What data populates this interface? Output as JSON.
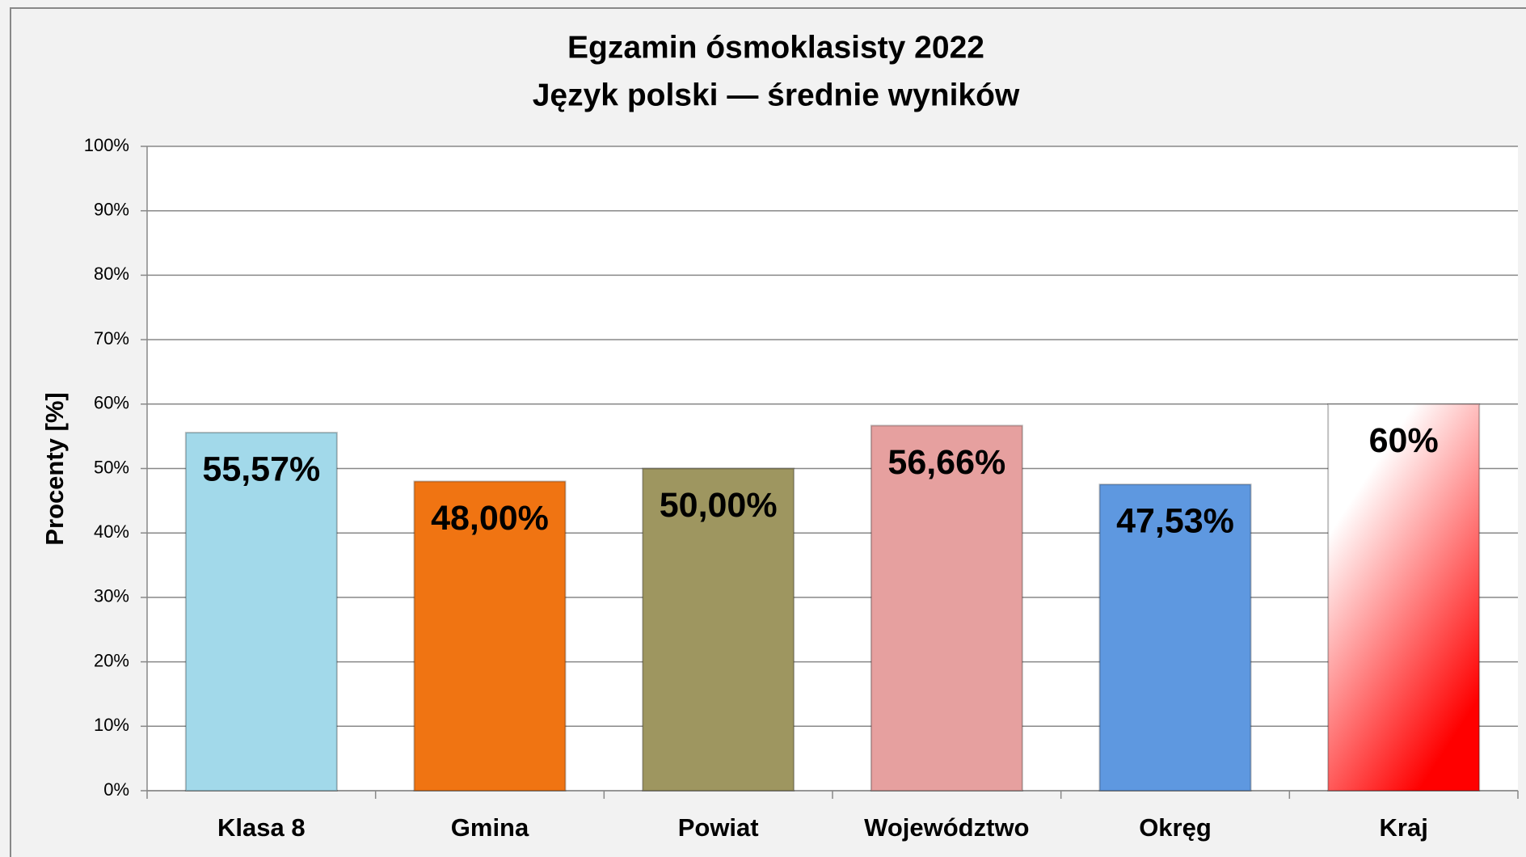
{
  "chart_data": {
    "type": "bar",
    "title": "Egzamin ósmoklasisty 2022",
    "subtitle": "Język polski — średnie wyników",
    "y_label": "Procenty [%]",
    "categories": [
      "Klasa 8",
      "Gmina",
      "Powiat",
      "Województwo",
      "Okręg",
      "Kraj"
    ],
    "values": [
      55.57,
      48.0,
      50.0,
      56.66,
      47.53,
      60
    ],
    "value_labels": [
      "55,57%",
      "48,00%",
      "50,00%",
      "56,66%",
      "47,53%",
      "60%"
    ],
    "colors": [
      "#a2d9ea",
      "#f07412",
      "#9e9660",
      "#e6a09f",
      "#5e98e0",
      [
        "#ffffff",
        "#ff0000"
      ]
    ],
    "ylim": [
      0,
      100
    ],
    "yticks": [
      {
        "value": 0,
        "label": "0%"
      },
      {
        "value": 10,
        "label": "10%"
      },
      {
        "value": 20,
        "label": "20%"
      },
      {
        "value": 30,
        "label": "30%"
      },
      {
        "value": 40,
        "label": "40%"
      },
      {
        "value": 50,
        "label": "50%"
      },
      {
        "value": 60,
        "label": "60%"
      },
      {
        "value": 70,
        "label": "70%"
      },
      {
        "value": 80,
        "label": "80%"
      },
      {
        "value": 90,
        "label": "90%"
      },
      {
        "value": 100,
        "label": "100%"
      }
    ],
    "grid": true
  }
}
